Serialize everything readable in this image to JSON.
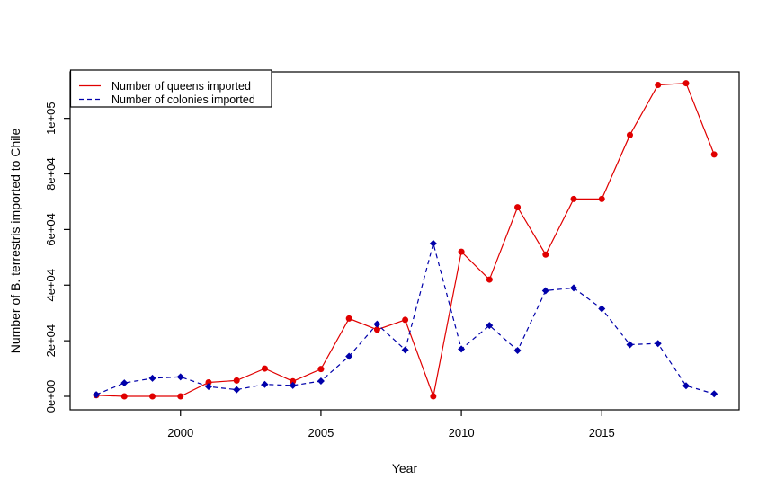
{
  "chart_data": {
    "type": "line",
    "title": "",
    "xlabel": "Year",
    "ylabel": "Number of B. terrestris imported to Chile",
    "x": [
      1997,
      1998,
      1999,
      2000,
      2001,
      2002,
      2003,
      2004,
      2005,
      2006,
      2007,
      2008,
      2009,
      2010,
      2011,
      2012,
      2013,
      2014,
      2015,
      2016,
      2017,
      2018,
      2019
    ],
    "series": [
      {
        "name": "Number of queens imported",
        "color": "#e00000",
        "line_style": "solid",
        "marker": "circle",
        "values": [
          400,
          0,
          0,
          0,
          5000,
          5700,
          10000,
          5400,
          9800,
          28000,
          24000,
          27500,
          0,
          52000,
          42000,
          68000,
          51000,
          71000,
          71000,
          94000,
          112000,
          112600,
          87000
        ]
      },
      {
        "name": "Number of colonies imported",
        "color": "#0000aa",
        "line_style": "dashed",
        "marker": "diamond",
        "values": [
          600,
          4800,
          6500,
          7000,
          3500,
          2400,
          4300,
          3900,
          5500,
          14400,
          26000,
          16700,
          55000,
          17000,
          25500,
          16500,
          38000,
          39000,
          31500,
          18600,
          19000,
          3800,
          900
        ]
      }
    ],
    "x_tick_values": [
      2000,
      2005,
      2010,
      2015
    ],
    "x_tick_labels": [
      "2000",
      "2005",
      "2010",
      "2015"
    ],
    "y_tick_values": [
      0,
      20000,
      40000,
      60000,
      80000,
      100000
    ],
    "y_tick_labels": [
      "0e+00",
      "2e+04",
      "4e+04",
      "6e+04",
      "8e+04",
      "1e+05"
    ],
    "xlim": [
      1996.07,
      2019.89
    ],
    "ylim": [
      -4850,
      116700
    ],
    "grid": false,
    "legend_position": "top-left",
    "axis_color": "#000000",
    "background_color": "#ffffff"
  }
}
